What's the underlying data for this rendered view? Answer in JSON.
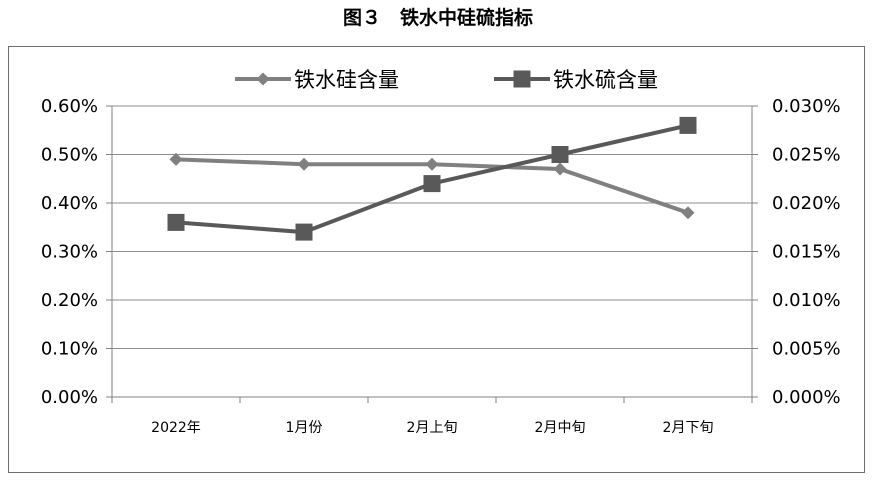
{
  "figure_title": "图３　铁水中硅硫指标",
  "chart_data": {
    "type": "line",
    "categories": [
      "2022年",
      "1月份",
      "2月上旬",
      "2月中旬",
      "2月下旬"
    ],
    "series": [
      {
        "name": "铁水硅含量",
        "axis": "left",
        "marker": "diamond",
        "color": "#808080",
        "values": [
          0.49,
          0.48,
          0.48,
          0.47,
          0.38
        ]
      },
      {
        "name": "铁水硫含量",
        "axis": "right",
        "marker": "square",
        "color": "#595959",
        "values": [
          0.018,
          0.017,
          0.022,
          0.025,
          0.028
        ]
      }
    ],
    "y_left": {
      "ylim": [
        0,
        0.6
      ],
      "ticks": [
        "0.00%",
        "0.10%",
        "0.20%",
        "0.30%",
        "0.40%",
        "0.50%",
        "0.60%"
      ]
    },
    "y_right": {
      "ylim": [
        0,
        0.03
      ],
      "ticks": [
        "0.000%",
        "0.005%",
        "0.010%",
        "0.015%",
        "0.020%",
        "0.025%",
        "0.030%"
      ]
    },
    "grid": true,
    "legend_position": "top"
  }
}
